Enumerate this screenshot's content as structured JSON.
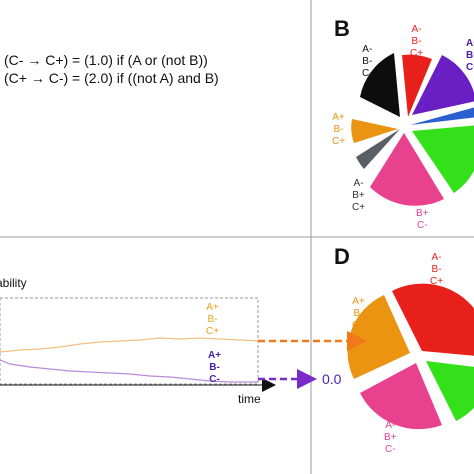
{
  "panel_b": {
    "letter": "B",
    "rules": [
      "(C- → C+) = (1.0) if (A or (not B))",
      "(C+ → C-) = (2.0) if ((not A) and B)"
    ],
    "slices": [
      {
        "lines": [
          "A-",
          "B-",
          "C+"
        ],
        "color": "#e8201c"
      },
      {
        "lines": [
          "A+",
          "B+",
          "C+"
        ],
        "color": "#6a1fc4"
      },
      {
        "lines": [],
        "color": "#2a5fd0"
      },
      {
        "lines": [],
        "color": "#33e01a"
      },
      {
        "lines": [
          "A-",
          "B+",
          "C-"
        ],
        "color": "#e8418d"
      },
      {
        "lines": [
          "A-",
          "B+",
          "C+"
        ],
        "color": "#5a5f66"
      },
      {
        "lines": [
          "A+",
          "B-",
          "C+"
        ],
        "color": "#ea9411"
      },
      {
        "lines": [
          "A-",
          "B-",
          "C-"
        ],
        "color": "#0d0d0d"
      }
    ]
  },
  "panel_c": {
    "title_fragment": "ability",
    "time_label": "time",
    "series": [
      {
        "lines": [
          "A+",
          "B-",
          "C+"
        ],
        "color": "#e8a020"
      },
      {
        "lines": [
          "A+",
          "B-",
          "C-"
        ],
        "color": "#4b1fa8"
      }
    ],
    "purple_value": "0.0"
  },
  "panel_d": {
    "letter": "D",
    "slices": [
      {
        "lines": [
          "A-",
          "B-",
          "C+"
        ],
        "color": "#e8201c"
      },
      {
        "lines": [],
        "color": "#33e01a"
      },
      {
        "lines": [
          "A-",
          "B+",
          "C-"
        ],
        "color": "#e8418d"
      },
      {
        "lines": [
          "A+",
          "B-",
          "C+"
        ],
        "color": "#ea9411"
      }
    ]
  }
}
